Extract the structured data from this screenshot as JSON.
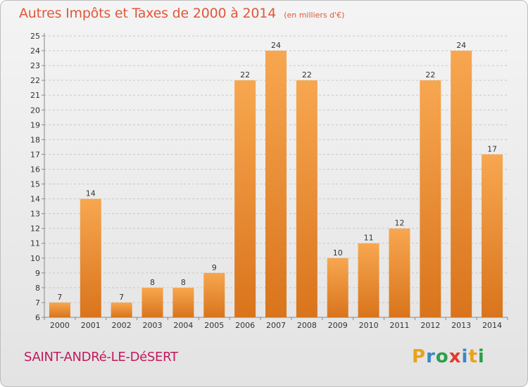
{
  "header": {
    "title": "Autres Impôts et Taxes de 2000 à 2014",
    "unit": "(en milliers d'€)"
  },
  "footer": {
    "commune": "SAINT-ANDRé-LE-DéSERT",
    "brand_letters": [
      "P",
      "r",
      "o",
      "x",
      "i",
      "t",
      "i"
    ],
    "brand_colors": [
      "#e8a317",
      "#3a86c8",
      "#2e9e4a",
      "#e23b2e",
      "#3a86c8",
      "#e8a317",
      "#2e9e4a"
    ]
  },
  "colors": {
    "bar_light": "#f7a750",
    "bar_dark": "#d9741c",
    "title": "#e1573a",
    "commune": "#c2185b",
    "grid": "#c8c8c8"
  },
  "chart_data": {
    "type": "bar",
    "title": "Autres Impôts et Taxes de 2000 à 2014",
    "subtitle": "(en milliers d'€)",
    "categories": [
      "2000",
      "2001",
      "2002",
      "2003",
      "2004",
      "2005",
      "2006",
      "2007",
      "2008",
      "2009",
      "2010",
      "2011",
      "2012",
      "2013",
      "2014"
    ],
    "values": [
      7,
      14,
      7,
      8,
      8,
      9,
      22,
      24,
      22,
      10,
      11,
      12,
      22,
      24,
      17
    ],
    "ylim": [
      6,
      25
    ],
    "yticks": [
      6,
      7,
      8,
      9,
      10,
      11,
      12,
      13,
      14,
      15,
      16,
      17,
      18,
      19,
      20,
      21,
      22,
      23,
      24,
      25
    ],
    "grid": true,
    "xlabel": "",
    "ylabel": ""
  }
}
